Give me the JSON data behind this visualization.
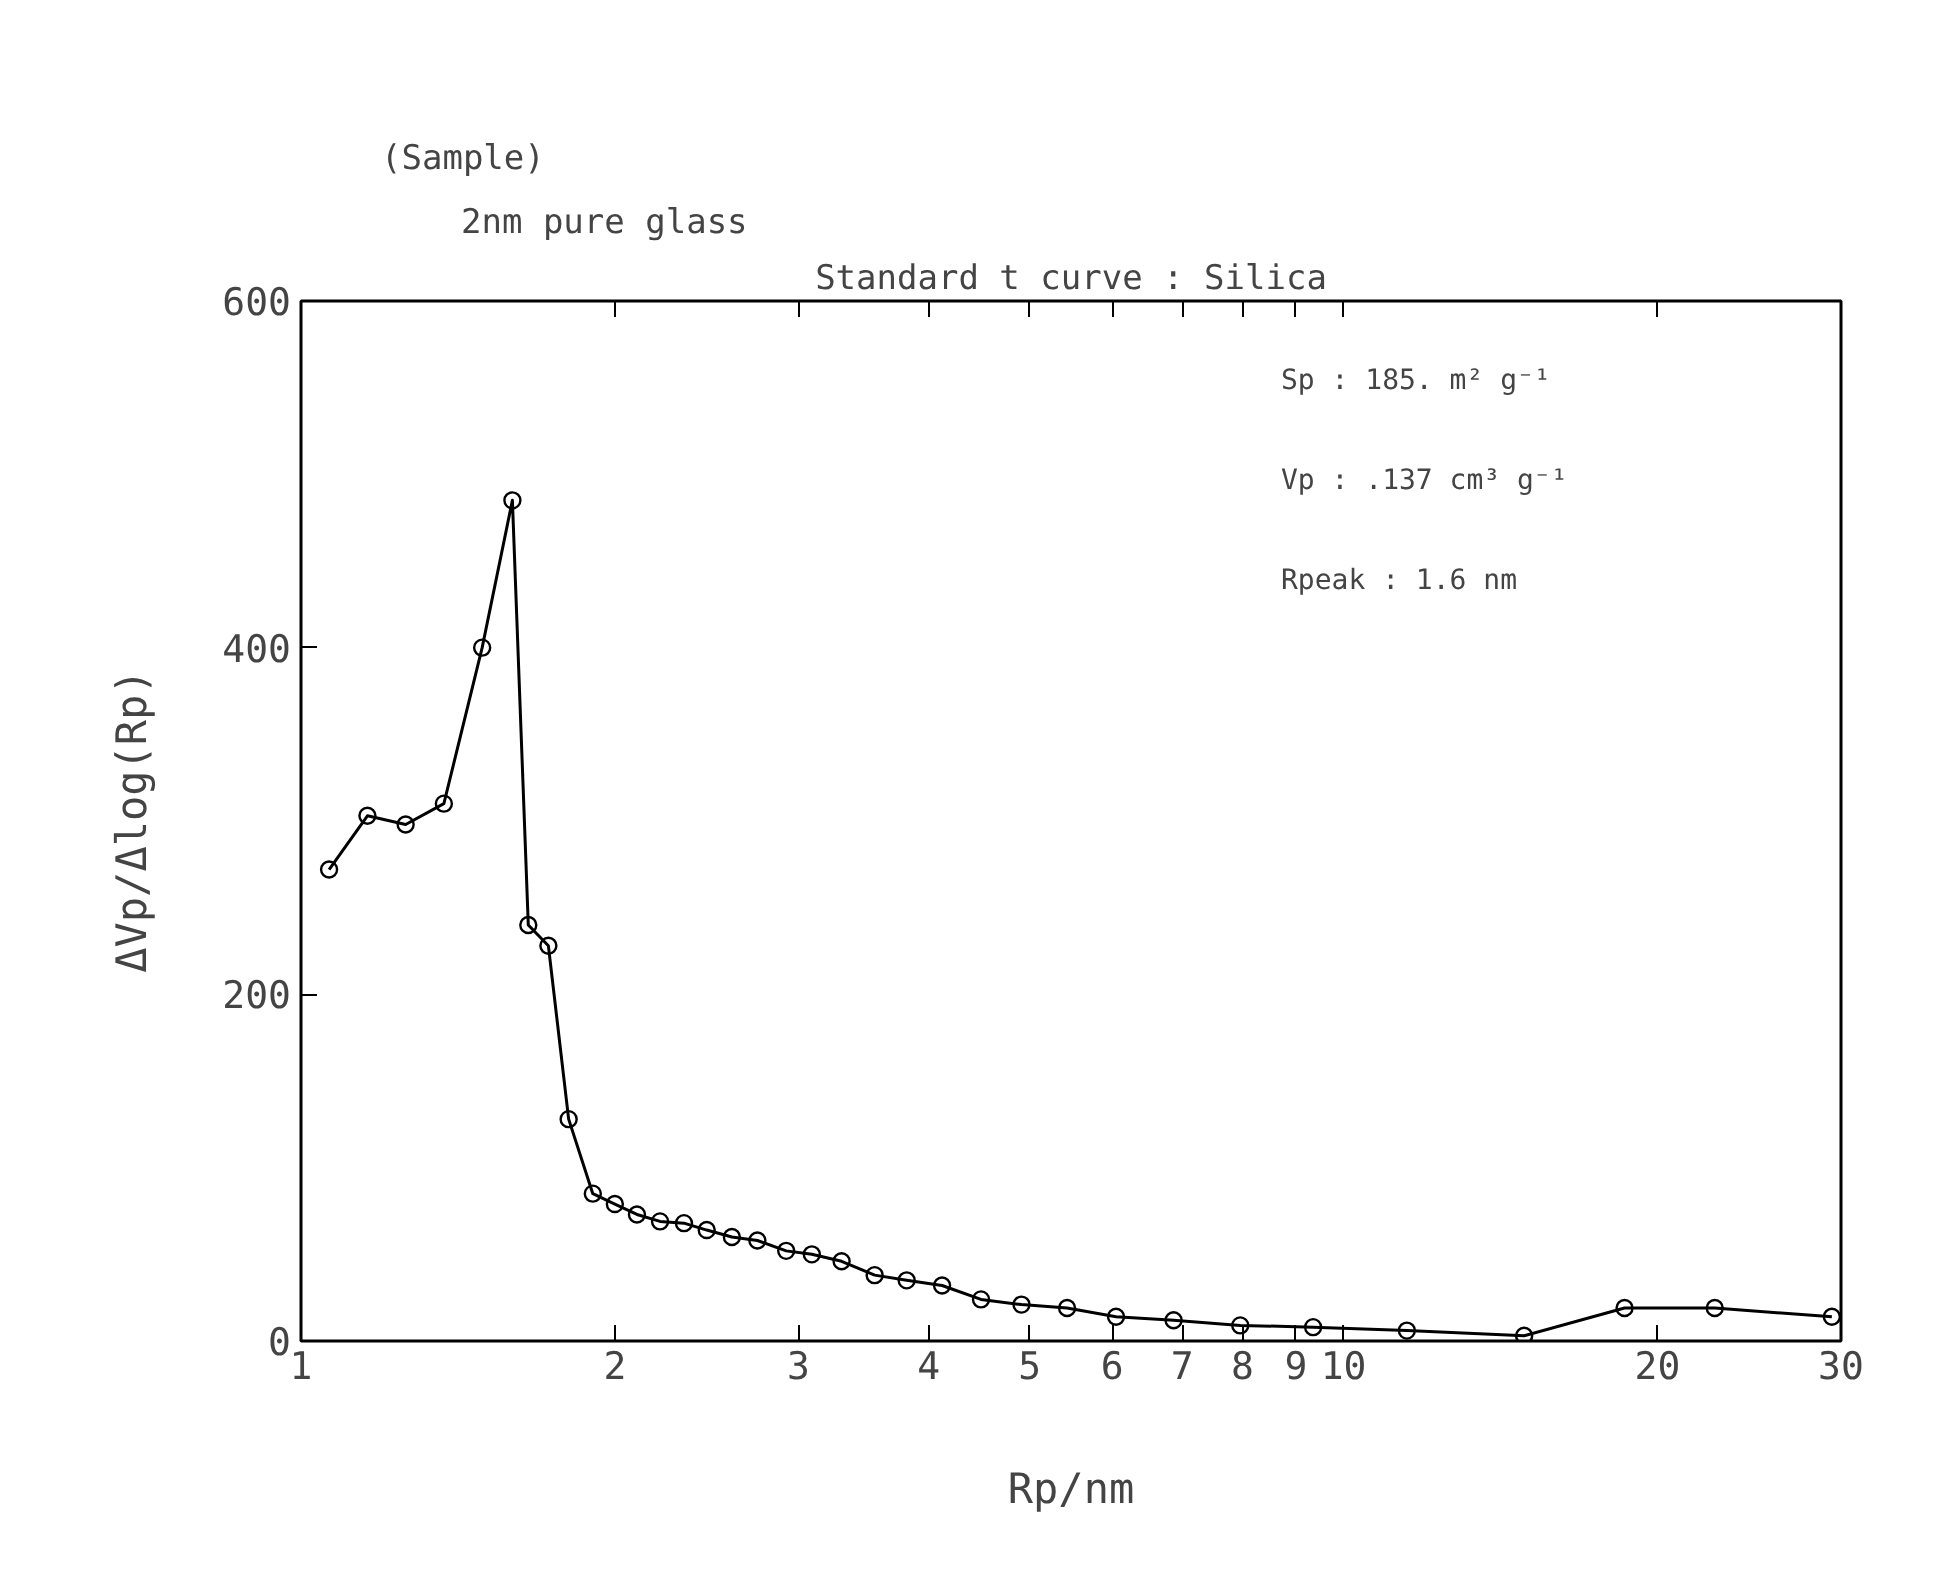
{
  "chart_data": {
    "type": "line",
    "title": "(Sample)",
    "subtitle": "2nm pure glass",
    "xlabel": "Rp/nm",
    "ylabel": "ΔVp/Δlog(Rp)",
    "annotations": [
      "Standard t curve : Silica",
      "Sp : 185. m² g⁻¹",
      "Vp : .137 cm³ g⁻¹",
      "Rpeak : 1.6 nm"
    ],
    "log": "x",
    "xlim": [
      1,
      30
    ],
    "ylim": [
      0,
      600
    ],
    "xticks": [
      1,
      2,
      3,
      4,
      5,
      6,
      7,
      8,
      9,
      10,
      20,
      30
    ],
    "yticks": [
      0,
      200,
      400,
      600
    ],
    "grid": false,
    "marker": "circle",
    "line_style": "solid",
    "series": [
      {
        "color": "#000000",
        "x": [
          1.064,
          1.158,
          1.26,
          1.371,
          1.492,
          1.595,
          1.652,
          1.727,
          1.806,
          1.905,
          2.0,
          2.1,
          2.21,
          2.33,
          2.45,
          2.59,
          2.74,
          2.92,
          3.09,
          3.3,
          3.55,
          3.81,
          4.12,
          4.49,
          4.91,
          5.43,
          6.05,
          6.87,
          7.96,
          9.35,
          11.5,
          14.9,
          18.6,
          22.7,
          29.4
        ],
        "values": [
          272,
          303,
          298,
          310,
          400,
          485,
          240,
          228,
          128,
          85,
          79,
          73,
          69,
          68,
          64,
          60,
          58,
          52,
          50,
          46,
          38,
          35,
          32,
          24,
          21,
          19,
          14,
          12,
          9,
          8,
          6,
          3,
          19,
          19,
          14
        ]
      }
    ]
  }
}
